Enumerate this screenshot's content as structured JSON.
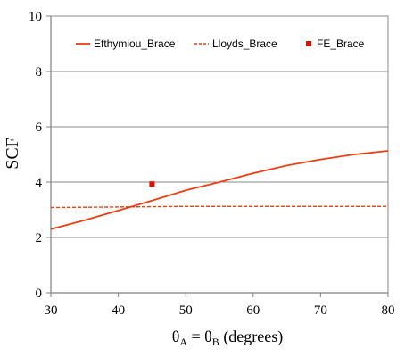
{
  "chart_data": {
    "type": "line",
    "ylabel": "SCF",
    "xlabel_parts": {
      "theta": "θ",
      "sub_a": "A",
      "equals": " = θ",
      "sub_b": "B",
      "rest": " (degrees)"
    },
    "xlim": [
      30,
      80
    ],
    "ylim": [
      0,
      10
    ],
    "x_ticks": [
      30,
      40,
      50,
      60,
      70,
      80
    ],
    "y_ticks": [
      0,
      2,
      4,
      6,
      8,
      10
    ],
    "grid": "horizontal",
    "legend_position": "top",
    "series": [
      {
        "name": "Efthymiou_Brace",
        "style": "solid-line",
        "color": "#ee3d10",
        "x": [
          30,
          35,
          40,
          45,
          50,
          55,
          60,
          65,
          70,
          75,
          80
        ],
        "y": [
          2.3,
          2.62,
          2.97,
          3.33,
          3.7,
          4.0,
          4.32,
          4.6,
          4.82,
          5.0,
          5.13
        ]
      },
      {
        "name": "Lloyds_Brace",
        "style": "dashed-line",
        "color": "#ee3d10",
        "x": [
          30,
          35,
          40,
          45,
          50,
          55,
          60,
          65,
          70,
          75,
          80
        ],
        "y": [
          3.08,
          3.09,
          3.1,
          3.11,
          3.12,
          3.12,
          3.12,
          3.12,
          3.12,
          3.12,
          3.12
        ]
      },
      {
        "name": "FE_Brace",
        "style": "square-marker",
        "color": "#dd1100",
        "x": [
          45
        ],
        "y": [
          3.93
        ]
      }
    ]
  }
}
